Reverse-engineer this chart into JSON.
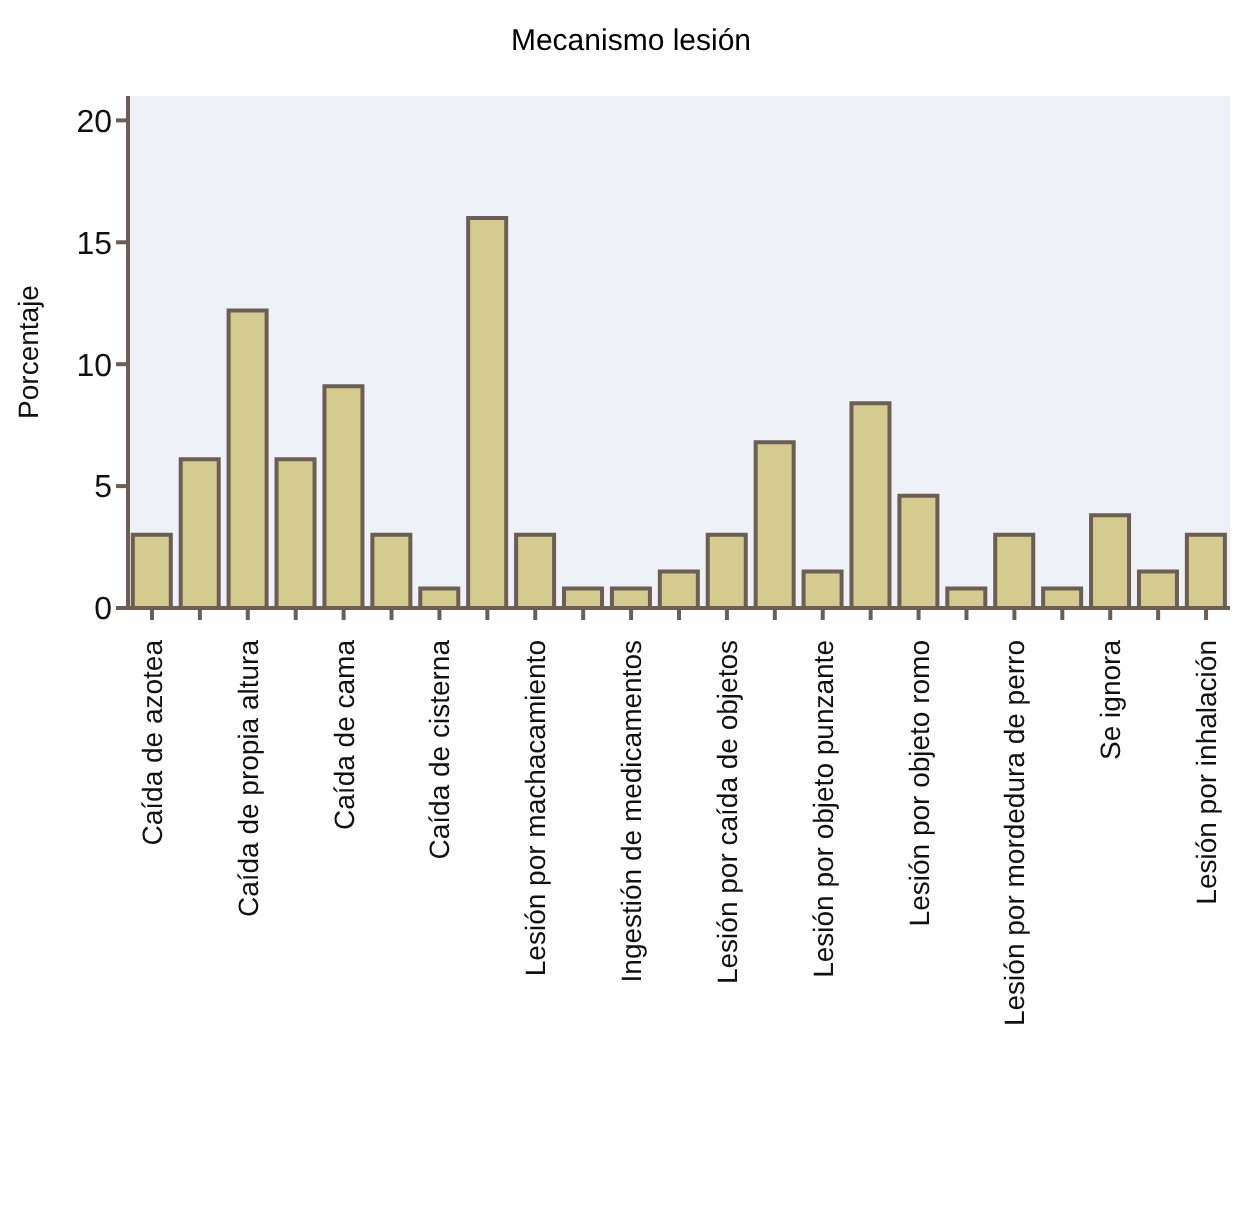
{
  "chart_data": {
    "type": "bar",
    "title": "Mecanismo lesión",
    "ylabel": "Porcentaje",
    "categories": [
      "Caída de azotea",
      null,
      "Caída de propia altura",
      null,
      "Caída de cama",
      null,
      "Caída de cisterna",
      null,
      "Lesión por machacamiento",
      null,
      "Ingestión de medicamentos",
      null,
      "Lesión por caída de objetos",
      null,
      "Lesión por objeto punzante",
      null,
      "Lesión por objeto romo",
      null,
      "Lesión por mordedura de perro",
      null,
      "Se ignora",
      null,
      "Lesión por inhalación"
    ],
    "values": [
      3.0,
      6.1,
      12.2,
      6.1,
      9.1,
      3.0,
      0.8,
      16.0,
      3.0,
      0.8,
      0.8,
      1.5,
      3.0,
      6.8,
      1.5,
      8.4,
      4.6,
      0.8,
      3.0,
      0.8,
      3.8,
      1.5,
      3.0
    ],
    "color": "#d4cc8f",
    "ylim": [
      0,
      21
    ],
    "yticks": [
      0,
      5,
      10,
      15,
      20
    ],
    "grid": false,
    "legend": false
  }
}
